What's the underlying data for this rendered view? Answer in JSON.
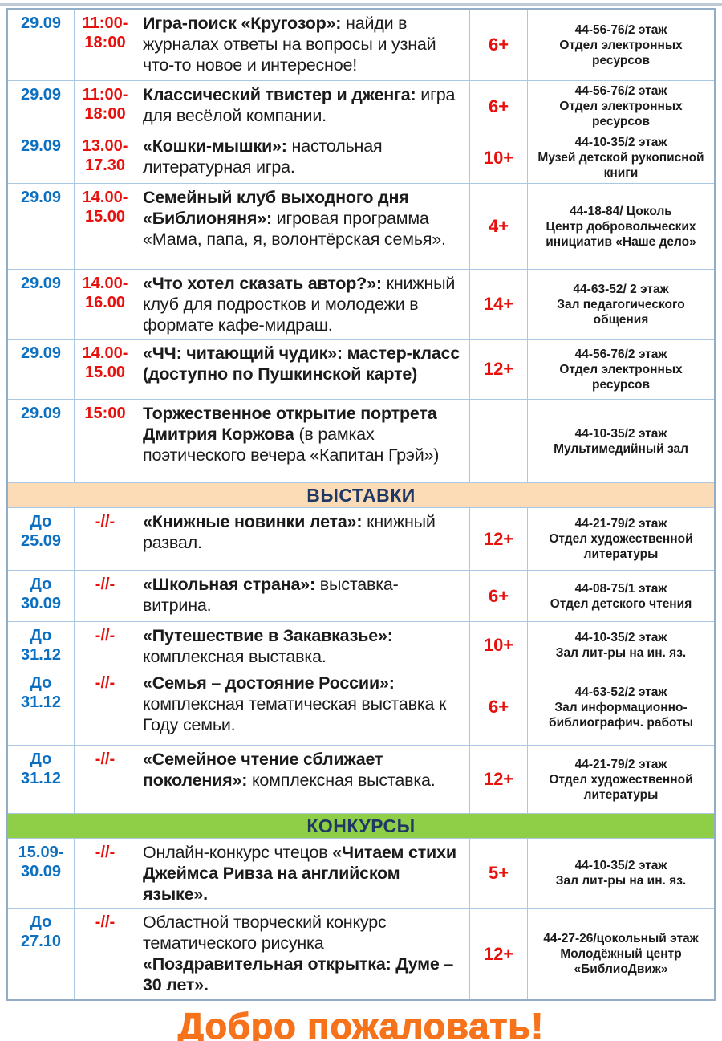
{
  "colors": {
    "date_blue": "#0d6fc0",
    "time_red": "#e8100c",
    "age_red": "#e8100c",
    "text_black": "#1b1b1b",
    "section_text_navy": "#1f3864",
    "exhibitions_bg": "#fbdcb7",
    "contests_bg": "#8fce47",
    "welcome_orange": "#f6731b",
    "border_light_blue": "#aac7e4",
    "border_outer": "#94adc7"
  },
  "table": {
    "sections": [
      {
        "header": null,
        "rows": [
          {
            "date": "29.09",
            "time": "11:00-\n18:00",
            "desc": [
              {
                "t": "Игра-поиск «Кругозор»: ",
                "b": true
              },
              {
                "t": "найди в журналах ответы на вопросы и узнай что-то новое и интересное!",
                "b": false
              }
            ],
            "age": "6+",
            "location": "44-56-76/2 этаж\nОтдел электронных ресурсов"
          },
          {
            "date": "29.09",
            "time": "11:00-\n18:00",
            "desc": [
              {
                "t": "Классический твистер и дженга: ",
                "b": true
              },
              {
                "t": "игра для весёлой компании.",
                "b": false
              }
            ],
            "age": "6+",
            "location": "44-56-76/2 этаж\nОтдел электронных ресурсов"
          },
          {
            "date": "29.09",
            "time": "13.00-\n17.30",
            "desc": [
              {
                "t": "«Кошки-мышки»: ",
                "b": true
              },
              {
                "t": "настольная литературная игра.",
                "b": false
              }
            ],
            "age": "10+",
            "location": "44-10-35/2 этаж\nМузей детской рукописной книги"
          },
          {
            "date": "29.09",
            "time": "14.00-\n15.00",
            "desc": [
              {
                "t": "Семейный клуб выходного дня «Библионяня»: ",
                "b": true
              },
              {
                "t": "игровая программа «Мама, папа, я, волонтёрская семья».",
                "b": false
              }
            ],
            "age": "4+",
            "location": "44-18-84/ Цоколь\nЦентр добровольческих инициатив «Наше дело»"
          },
          {
            "date": "29.09",
            "time": "14.00-\n16.00",
            "desc": [
              {
                "t": "«Что хотел сказать автор?»: ",
                "b": true
              },
              {
                "t": "книжный клуб для подростков и молодежи в формате кафе-мидраш.",
                "b": false
              }
            ],
            "age": "14+",
            "location": "44-63-52/ 2 этаж\nЗал педагогического общения"
          },
          {
            "date": "29.09",
            "time": "14.00-\n15.00",
            "desc": [
              {
                "t": "«ЧЧ: читающий чудик»: мастер-класс (доступно по Пушкинской карте)",
                "b": true
              }
            ],
            "age": "12+",
            "location": "44-56-76/2 этаж\nОтдел электронных ресурсов"
          },
          {
            "date": "29.09",
            "time": "15:00",
            "desc": [
              {
                "t": "Торжественное открытие портрета Дмитрия Коржова ",
                "b": true
              },
              {
                "t": "(в рамках поэтического вечера «Капитан Грэй»)",
                "b": false
              }
            ],
            "age": "",
            "location": "44-10-35/2 этаж\nМультимедийный зал"
          }
        ]
      },
      {
        "header": "ВЫСТАВКИ",
        "bg_key": "exhibitions_bg",
        "rows": [
          {
            "date": "До\n25.09",
            "time": "-//-",
            "desc": [
              {
                "t": "«Книжные новинки лета»: ",
                "b": true
              },
              {
                "t": "книжный развал.",
                "b": false
              }
            ],
            "age": "12+",
            "location": "44-21-79/2 этаж\nОтдел художественной литературы"
          },
          {
            "date": "До\n30.09",
            "time": "-//-",
            "desc": [
              {
                "t": "«Школьная страна»: ",
                "b": true
              },
              {
                "t": "выставка-витрина.",
                "b": false
              }
            ],
            "age": "6+",
            "location": "44-08-75/1 этаж\nОтдел детского чтения"
          },
          {
            "date": "До\n31.12",
            "time": "-//-",
            "desc": [
              {
                "t": "«Путешествие в Закавказье»: ",
                "b": true
              },
              {
                "t": "комплексная выставка.",
                "b": false
              }
            ],
            "age": "10+",
            "location": "44-10-35/2 этаж\nЗал лит-ры на ин. яз."
          },
          {
            "date": "До\n31.12",
            "time": "-//-",
            "desc": [
              {
                "t": "«Семья – достояние России»: ",
                "b": true
              },
              {
                "t": "комплексная тематическая выставка к Году семьи.",
                "b": false
              }
            ],
            "age": "6+",
            "location": "44-63-52/2 этаж\nЗал информационно-библиографич. работы"
          },
          {
            "date": "До\n31.12",
            "time": "-//-",
            "desc": [
              {
                "t": "«Семейное чтение сближает поколения»: ",
                "b": true
              },
              {
                "t": "комплексная выставка.",
                "b": false
              }
            ],
            "age": "12+",
            "location": "44-21-79/2 этаж\nОтдел художественной литературы"
          }
        ]
      },
      {
        "header": "КОНКУРСЫ",
        "bg_key": "contests_bg",
        "rows": [
          {
            "date": "15.09-\n30.09",
            "time": "-//-",
            "desc": [
              {
                "t": "Онлайн-конкурс чтецов ",
                "b": false
              },
              {
                "t": "«Читаем стихи Джеймса Ривза на английском языке».",
                "b": true
              }
            ],
            "age": "5+",
            "location": "44-10-35/2 этаж\nЗал лит-ры на ин. яз."
          },
          {
            "date": "До\n27.10",
            "time": "-//-",
            "desc": [
              {
                "t": "Областной творческий конкурс тематического рисунка ",
                "b": false
              },
              {
                "t": "«Поздравительная открытка: Думе – 30 лет».",
                "b": true
              }
            ],
            "age": "12+",
            "location": "44-27-26/цокольный этаж\nМолодёжный центр «БиблиоДвиж»"
          }
        ]
      }
    ]
  },
  "footer": {
    "welcome": "Добро пожаловать!"
  }
}
